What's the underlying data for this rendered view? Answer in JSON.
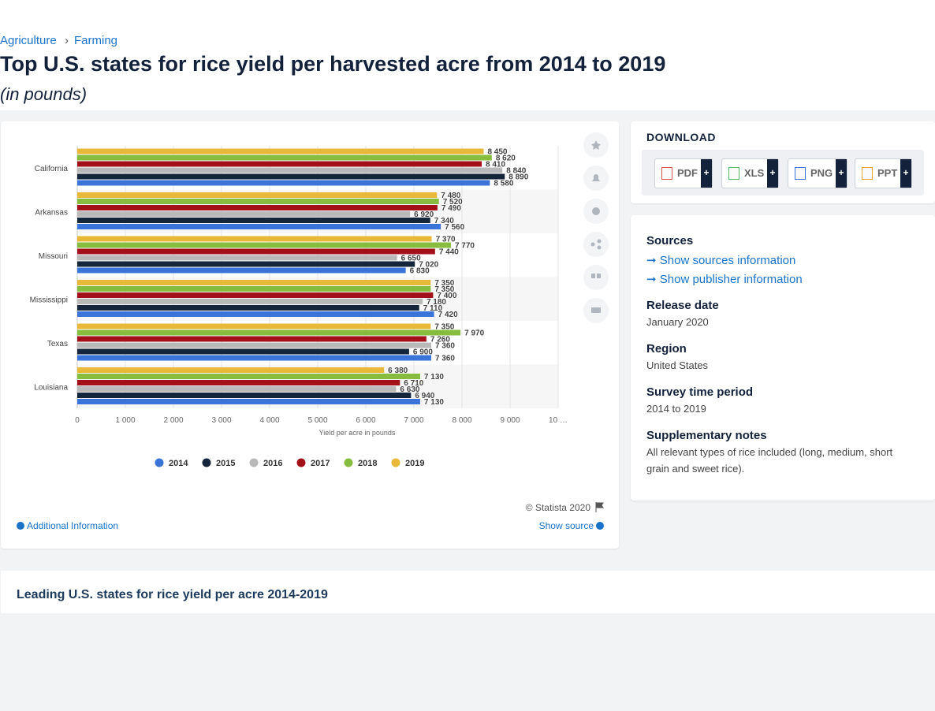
{
  "breadcrumb": [
    "Agriculture",
    "Farming"
  ],
  "breadcrumb_separator": "›",
  "title": "Top U.S. states for rice yield per harvested acre from 2014 to 2019",
  "subtitle": "(in pounds)",
  "chart_data": {
    "type": "bar",
    "orientation": "horizontal",
    "categories": [
      "California",
      "Arkansas",
      "Missouri",
      "Mississippi",
      "Texas",
      "Louisiana"
    ],
    "series": [
      {
        "name": "2014",
        "color": "#3b74d9",
        "values": [
          8580,
          7560,
          6830,
          7420,
          7360,
          7130
        ],
        "value_labels": [
          "8 580",
          "7 560",
          "6 830",
          "7 420",
          "7 360",
          "7 130"
        ]
      },
      {
        "name": "2015",
        "color": "#16263a",
        "values": [
          8890,
          7340,
          7020,
          7110,
          6900,
          6940
        ],
        "value_labels": [
          "8 890",
          "7 340",
          "7 020",
          "7 110",
          "6 900",
          "6 940"
        ]
      },
      {
        "name": "2016",
        "color": "#b9b9b9",
        "values": [
          8840,
          6920,
          6650,
          7180,
          7360,
          6630
        ],
        "value_labels": [
          "8 840",
          "6 920",
          "6 650",
          "7 180",
          "7 360",
          "6 630"
        ]
      },
      {
        "name": "2017",
        "color": "#a3101a",
        "values": [
          8410,
          7490,
          7440,
          7400,
          7260,
          6710
        ],
        "value_labels": [
          "8 410",
          "7 490",
          "7 440",
          "7 400",
          "7 260",
          "6 710"
        ]
      },
      {
        "name": "2018",
        "color": "#86bd3e",
        "values": [
          8620,
          7520,
          7770,
          7350,
          7970,
          7130
        ],
        "value_labels": [
          "8 620",
          "7 520",
          "7 770",
          "7 350",
          "7 970",
          "7 130"
        ]
      },
      {
        "name": "2019",
        "color": "#e8b838",
        "values": [
          8450,
          7480,
          7370,
          7350,
          7350,
          6380
        ],
        "value_labels": [
          "8 450",
          "7 480",
          "7 370",
          "7 350",
          "7 350",
          "6 380"
        ]
      }
    ],
    "xlim": [
      0,
      10000
    ],
    "xticks": [
      0,
      {
        "value": 1000,
        "label": "1 000"
      },
      {
        "value": 2000,
        "label": "2 000"
      },
      {
        "value": 3000,
        "label": "3 000"
      },
      {
        "value": 4000,
        "label": "4 000"
      },
      {
        "value": 5000,
        "label": "5 000"
      },
      {
        "value": 6000,
        "label": "6 000"
      },
      {
        "value": 7000,
        "label": "7 000"
      },
      {
        "value": 8000,
        "label": "8 000"
      },
      {
        "value": 9000,
        "label": "9 000"
      },
      {
        "value": 10000,
        "label": "10 …"
      }
    ],
    "xlabel": "Yield per acre in pounds",
    "grid": true,
    "legend": "bottom"
  },
  "chart_footer": {
    "copyright": "© Statista 2020",
    "additional_info": "Additional Information",
    "show_source": "Show source"
  },
  "download": {
    "title": "DOWNLOAD",
    "formats": [
      "PDF",
      "XLS",
      "PNG",
      "PPT"
    ],
    "add": "+"
  },
  "sources": {
    "title": "Sources",
    "show_sources": "Show sources information",
    "show_publisher": "Show publisher information"
  },
  "release_date": {
    "title": "Release date",
    "value": "January 2020"
  },
  "region": {
    "title": "Region",
    "value": "United States"
  },
  "survey_period": {
    "title": "Survey time period",
    "value": "2014 to 2019"
  },
  "notes": {
    "title": "Supplementary notes",
    "value": "All relevant types of rice included (long, medium, short grain and sweet rice)."
  },
  "related": {
    "title": "Leading U.S. states for rice yield per acre 2014-2019"
  }
}
